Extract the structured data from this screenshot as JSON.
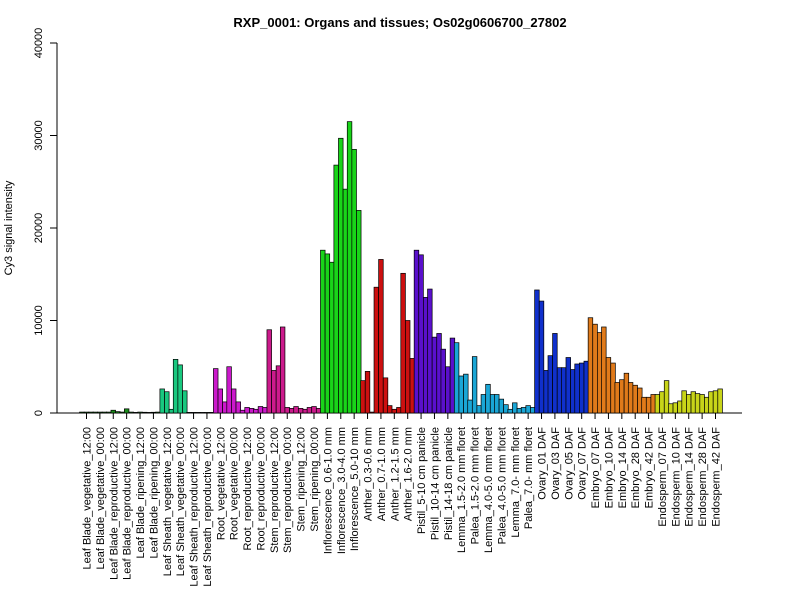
{
  "chart_data": {
    "type": "bar",
    "title": "RXP_0001: Organs and tissues; Os02g0606700_27802",
    "ylabel": "Cy3 signal intensity",
    "xlabel": "",
    "ylim": [
      0,
      40000
    ],
    "yticks": [
      0,
      10000,
      20000,
      30000,
      40000
    ],
    "grid": false,
    "categories": [
      "Leaf Blade_vegetative_12:00",
      "Leaf Blade_vegetative_00:00",
      "Leaf Blade_reproductive_12:00",
      "Leaf Blade_reproductive_00:00",
      "Leaf Blade_ripening_12:00",
      "Leaf Blade_ripening_00:00",
      "Leaf Sheath_vegetative_12:00",
      "Leaf Sheath_vegetative_00:00",
      "Leaf Sheath_reproductive_12:00",
      "Leaf Sheath_reproductive_00:00",
      "Root_vegetative_12:00",
      "Root_vegetative_00:00",
      "Root_reproductive_12:00",
      "Root_reproductive_00:00",
      "Stem_reproductive_12:00",
      "Stem_reproductive_00:00",
      "Stem_ripening_12:00",
      "Stem_ripening_00:00",
      "Inflorescence_0.6-1.0 mm",
      "Inflorescence_3.0-4.0 mm",
      "Inflorescence_5.0-10 mm",
      "Anther_0.3-0.6 mm",
      "Anther_0.7-1.0 mm",
      "Anther_1.2-1.5 mm",
      "Anther_1.6-2.0 mm",
      "Pistil_5-10 cm panicle",
      "Pistil_10-14 cm panicle",
      "Pistil_14-18 cm panicle",
      "Lemma_1.5-2.0 mm floret",
      "Palea_1.5-2.0 mm floret",
      "Lemma_4.0-5.0 mm floret",
      "Palea_4.0-5.0 mm floret",
      "Lemma_7.0- mm floret",
      "Palea_7.0- mm floret",
      "Ovary_01 DAF",
      "Ovary_03 DAF",
      "Ovary_05 DAF",
      "Ovary_07 DAF",
      "Embryo_07 DAF",
      "Embryo_10 DAF",
      "Embryo_14 DAF",
      "Embryo_28 DAF",
      "Embryo_42 DAF",
      "Endosperm_07 DAF",
      "Endosperm_10 DAF",
      "Endosperm_14 DAF",
      "Endosperm_28 DAF",
      "Endosperm_42 DAF"
    ],
    "colors": [
      "#1a8c1a",
      "#1a8c1a",
      "#1a8c1a",
      "#1a8c1a",
      "#1a8c1a",
      "#1a8c1a",
      "#19c87f",
      "#19c87f",
      "#19c87f",
      "#19c87f",
      "#cc19cc",
      "#cc19cc",
      "#cc19cc",
      "#cc19cc",
      "#cc1a8c",
      "#cc1a8c",
      "#cc1a8c",
      "#cc1a8c",
      "#19d419",
      "#19d419",
      "#19d419",
      "#cc1010",
      "#cc1010",
      "#cc1010",
      "#cc1010",
      "#5a10cc",
      "#5a10cc",
      "#5a10cc",
      "#1aa6d6",
      "#1aa6d6",
      "#1aa6d6",
      "#1aa6d6",
      "#1aa6d6",
      "#1aa6d6",
      "#1030cc",
      "#1030cc",
      "#1030cc",
      "#1030cc",
      "#e07a1a",
      "#e07a1a",
      "#e07a1a",
      "#e07a1a",
      "#e07a1a",
      "#c8d419",
      "#c8d419",
      "#c8d419",
      "#c8d419",
      "#c8d419"
    ],
    "bar_values": [
      [
        100,
        100,
        100
      ],
      [
        100,
        100,
        100
      ],
      [
        100,
        300,
        150
      ],
      [
        100,
        450,
        100
      ],
      [
        50,
        100,
        80
      ],
      [
        50,
        80,
        100
      ],
      [
        2600,
        2300,
        400
      ],
      [
        5800,
        5200,
        2400
      ],
      [
        60,
        60,
        50
      ],
      [
        60,
        50,
        60
      ],
      [
        4800,
        2600,
        1200
      ],
      [
        5000,
        2600,
        1200
      ],
      [
        300,
        600,
        500
      ],
      [
        400,
        700,
        600
      ],
      [
        9000,
        4600,
        5100
      ],
      [
        9300,
        600,
        500
      ],
      [
        700,
        500,
        400
      ],
      [
        600,
        700,
        500
      ],
      [
        17600,
        17200,
        16300
      ],
      [
        26800,
        29700,
        24200
      ],
      [
        31500,
        28500,
        21900
      ],
      [
        3500,
        4500,
        100
      ],
      [
        13600,
        16600,
        3800
      ],
      [
        800,
        400,
        600
      ],
      [
        15100,
        10000,
        5900
      ],
      [
        17600,
        17100,
        12500
      ],
      [
        13400,
        8200,
        8600
      ],
      [
        6900,
        5000,
        8100
      ],
      [
        7600,
        4000,
        4200
      ],
      [
        1400,
        6100,
        800
      ],
      [
        2000,
        3100,
        2000
      ],
      [
        2000,
        1500,
        900
      ],
      [
        400,
        1100,
        500
      ],
      [
        600,
        800,
        600
      ],
      [
        13300,
        12100,
        4600
      ],
      [
        6200,
        8600,
        4900
      ],
      [
        4900,
        6000,
        4700
      ],
      [
        5300,
        5400,
        5600
      ],
      [
        10300,
        9600,
        8700
      ],
      [
        9300,
        6000,
        5400
      ],
      [
        3300,
        3600,
        4300
      ],
      [
        3300,
        3000,
        2700
      ],
      [
        1700,
        1700,
        2000
      ],
      [
        2000,
        2300,
        3500
      ],
      [
        1000,
        1100,
        1300
      ],
      [
        2400,
        2000,
        2300
      ],
      [
        2100,
        2000,
        1700
      ],
      [
        2300,
        2400,
        2600
      ]
    ]
  }
}
